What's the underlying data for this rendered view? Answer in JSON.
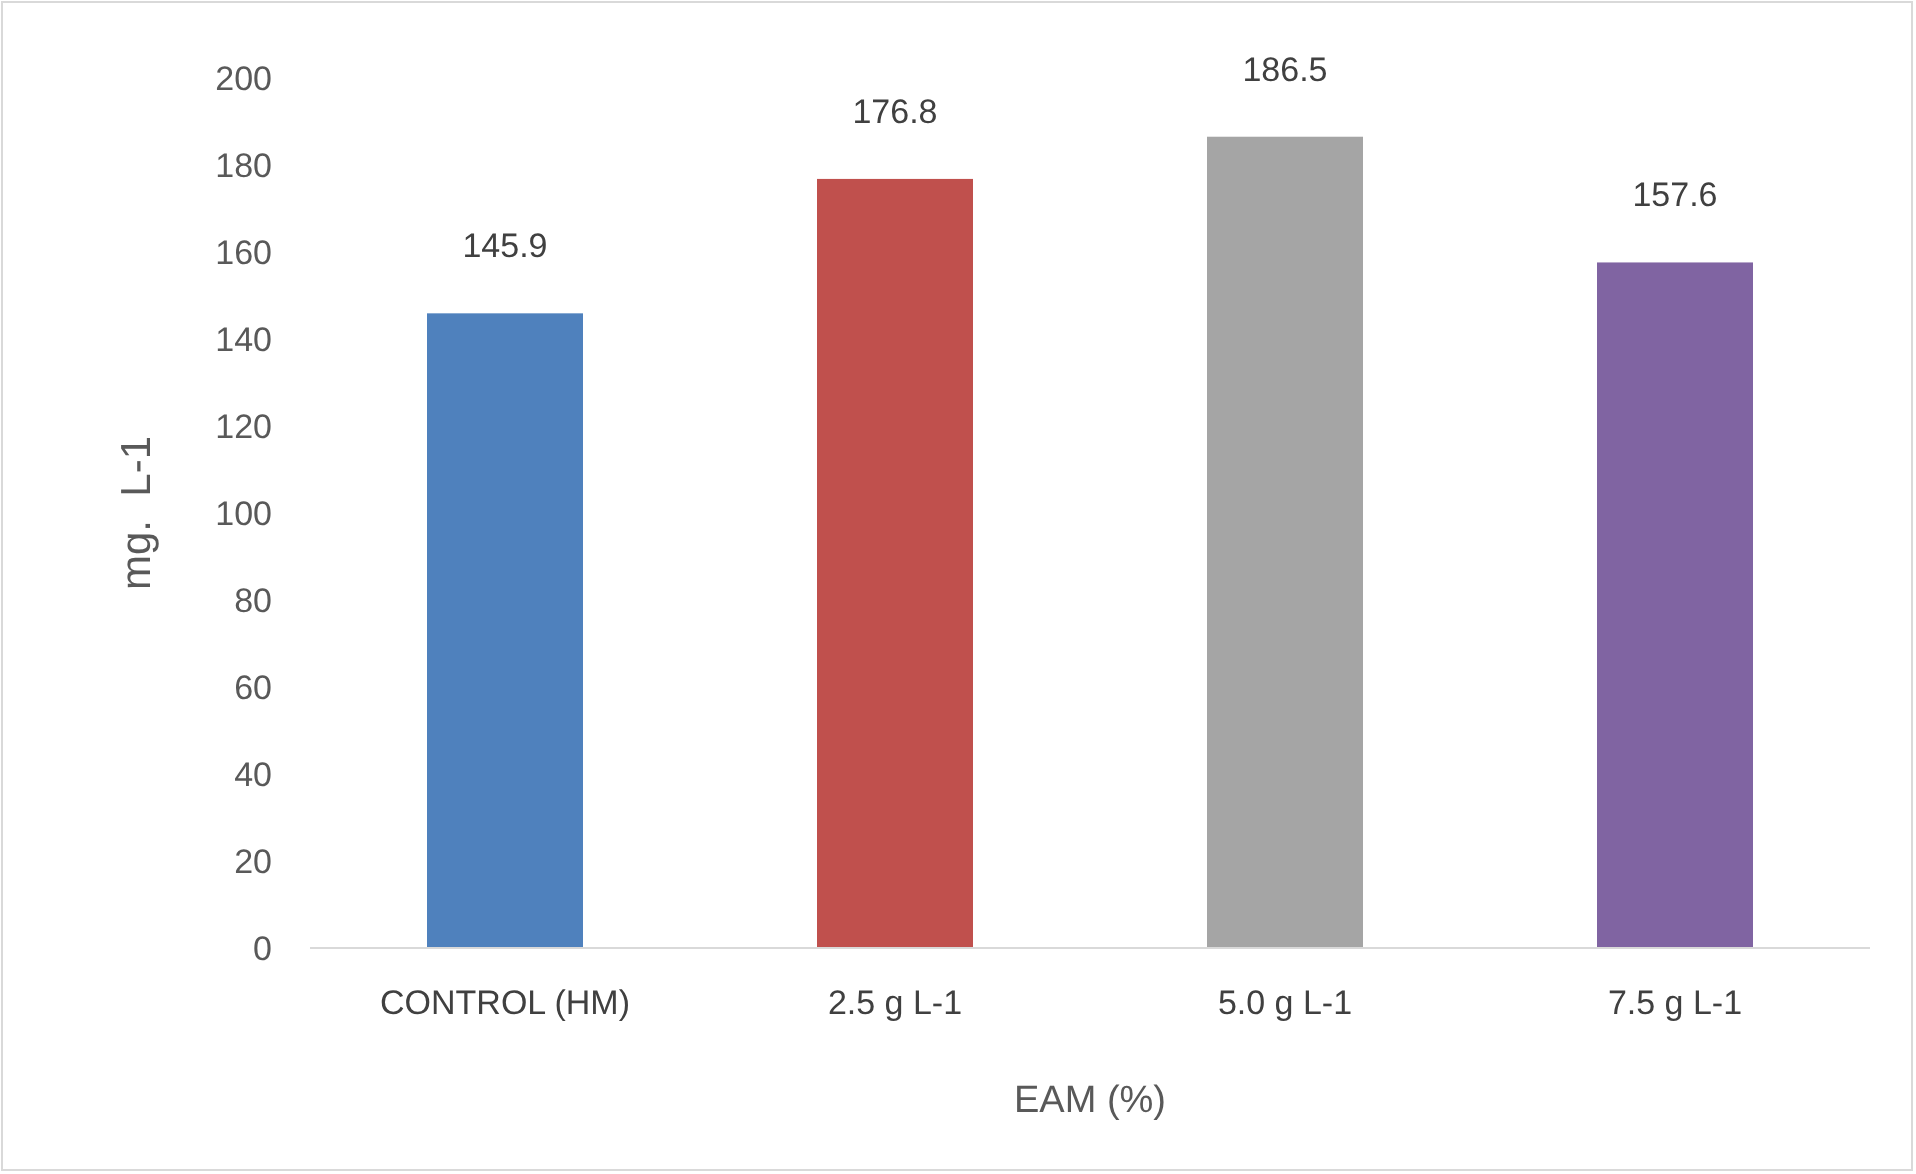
{
  "chart_data": {
    "type": "bar",
    "xlabel": "EAM (%)",
    "ylabel": "mg.  L-1",
    "categories": [
      "CONTROL (HM)",
      "2.5 g L-1",
      "5.0 g L-1",
      "7.5 g L-1"
    ],
    "values": [
      145.9,
      176.8,
      186.5,
      157.6
    ],
    "colors": [
      "#4f81bd",
      "#c0504d",
      "#a5a5a5",
      "#8064a2"
    ],
    "ylim": [
      0,
      200
    ],
    "yticks": [
      0,
      20,
      40,
      60,
      80,
      100,
      120,
      140,
      160,
      180,
      200
    ],
    "grid": false,
    "data_labels": true
  }
}
